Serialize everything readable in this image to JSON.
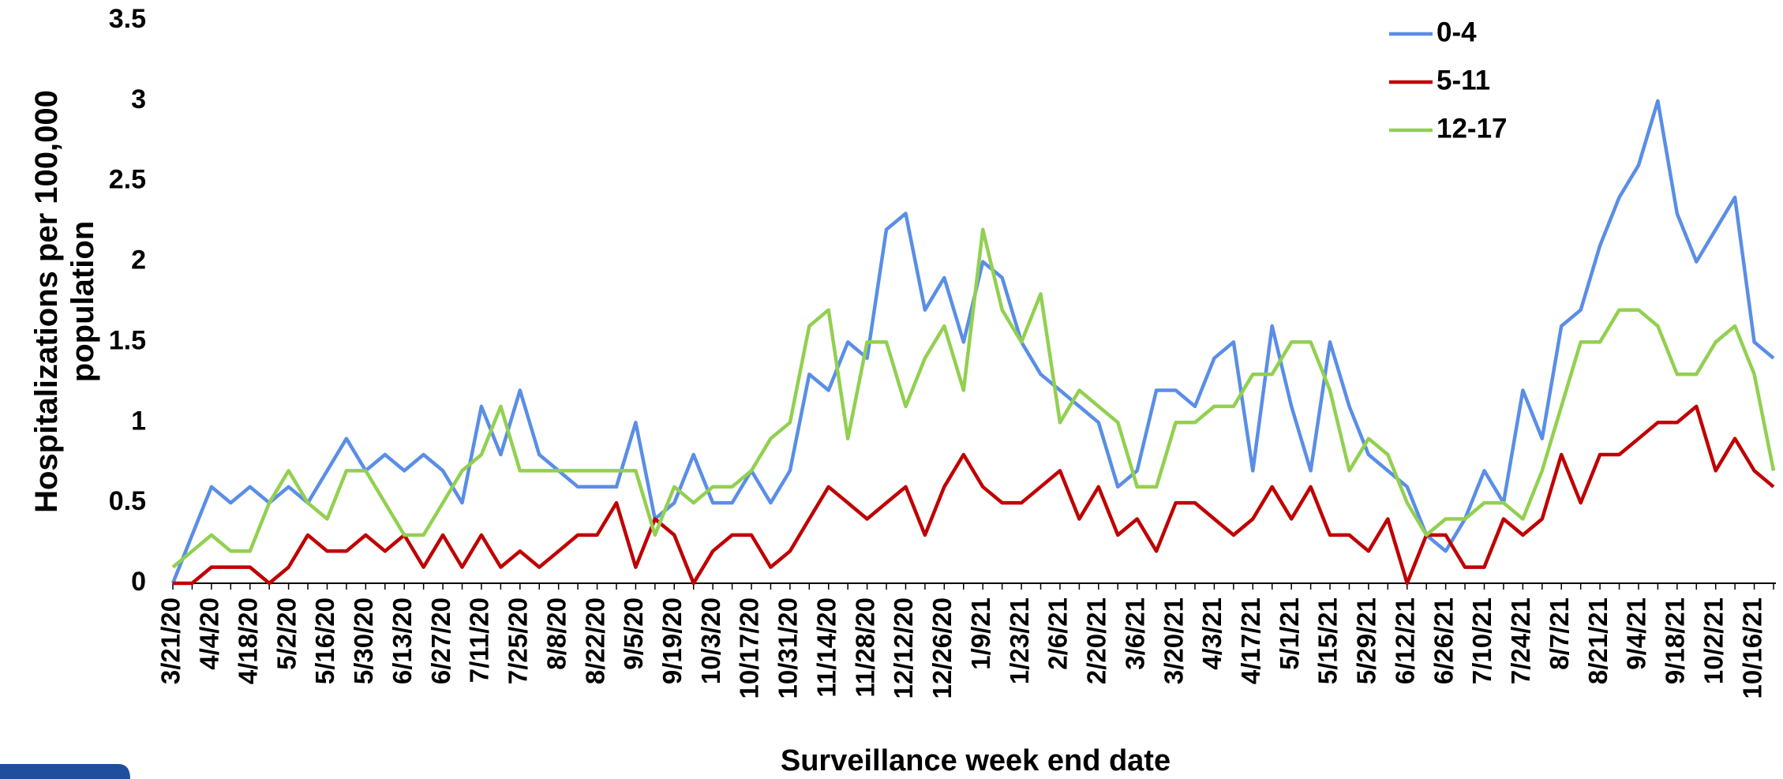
{
  "chart_data": {
    "type": "line",
    "x_label": "Surveillance week end date",
    "y_label": "Hospitalizations per 100,000 population",
    "categories": [
      "3/21/20",
      null,
      "4/4/20",
      null,
      "4/18/20",
      null,
      "5/2/20",
      null,
      "5/16/20",
      null,
      "5/30/20",
      null,
      "6/13/20",
      null,
      "6/27/20",
      null,
      "7/11/20",
      null,
      "7/25/20",
      null,
      "8/8/20",
      null,
      "8/22/20",
      null,
      "9/5/20",
      null,
      "9/19/20",
      null,
      "10/3/20",
      null,
      "10/17/20",
      null,
      "10/31/20",
      null,
      "11/14/20",
      null,
      "11/28/20",
      null,
      "12/12/20",
      null,
      "12/26/20",
      null,
      "1/9/21",
      null,
      "1/23/21",
      null,
      "2/6/21",
      null,
      "2/20/21",
      null,
      "3/6/21",
      null,
      "3/20/21",
      null,
      "4/3/21",
      null,
      "4/17/21",
      null,
      "5/1/21",
      null,
      "5/15/21",
      null,
      "5/29/21",
      null,
      "6/12/21",
      null,
      "6/26/21",
      null,
      "7/10/21",
      null,
      "7/24/21",
      null,
      "8/7/21",
      null,
      "8/21/21",
      null,
      "9/4/21",
      null,
      "9/18/21",
      null,
      "10/2/21",
      null,
      "10/16/21",
      null
    ],
    "series": [
      {
        "name": "0-4",
        "color": "#5a8ee6",
        "values": [
          0,
          0.3,
          0.6,
          0.5,
          0.6,
          0.5,
          0.6,
          0.5,
          0.7,
          0.9,
          0.7,
          0.8,
          0.7,
          0.8,
          0.7,
          0.5,
          1.1,
          0.8,
          1.2,
          0.8,
          0.7,
          0.6,
          0.6,
          0.6,
          1.0,
          0.4,
          0.5,
          0.8,
          0.5,
          0.5,
          0.7,
          0.5,
          0.7,
          1.3,
          1.2,
          1.5,
          1.4,
          2.2,
          2.3,
          1.7,
          1.9,
          1.5,
          2.0,
          1.9,
          1.5,
          1.3,
          1.2,
          1.1,
          1.0,
          0.6,
          0.7,
          1.2,
          1.2,
          1.1,
          1.4,
          1.5,
          0.7,
          1.6,
          1.1,
          0.7,
          1.5,
          1.1,
          0.8,
          0.7,
          0.6,
          0.3,
          0.2,
          0.4,
          0.7,
          0.5,
          1.2,
          0.9,
          1.6,
          1.7,
          2.1,
          2.4,
          2.6,
          3.0,
          2.3,
          2.0,
          2.2,
          2.4,
          1.5,
          1.4
        ]
      },
      {
        "name": "5-11",
        "color": "#c00000",
        "values": [
          0,
          0,
          0.1,
          0.1,
          0.1,
          0,
          0.1,
          0.3,
          0.2,
          0.2,
          0.3,
          0.2,
          0.3,
          0.1,
          0.3,
          0.1,
          0.3,
          0.1,
          0.2,
          0.1,
          0.2,
          0.3,
          0.3,
          0.5,
          0.1,
          0.4,
          0.3,
          0,
          0.2,
          0.3,
          0.3,
          0.1,
          0.2,
          0.4,
          0.6,
          0.5,
          0.4,
          0.5,
          0.6,
          0.3,
          0.6,
          0.8,
          0.6,
          0.5,
          0.5,
          0.6,
          0.7,
          0.4,
          0.6,
          0.3,
          0.4,
          0.2,
          0.5,
          0.5,
          0.4,
          0.3,
          0.4,
          0.6,
          0.4,
          0.6,
          0.3,
          0.3,
          0.2,
          0.4,
          0,
          0.3,
          0.3,
          0.1,
          0.1,
          0.4,
          0.3,
          0.4,
          0.8,
          0.5,
          0.8,
          0.8,
          0.9,
          1.0,
          1.0,
          1.1,
          0.7,
          0.9,
          0.7,
          0.6
        ]
      },
      {
        "name": "12-17",
        "color": "#92d050",
        "values": [
          0.1,
          0.2,
          0.3,
          0.2,
          0.2,
          0.5,
          0.7,
          0.5,
          0.4,
          0.7,
          0.7,
          0.5,
          0.3,
          0.3,
          0.5,
          0.7,
          0.8,
          1.1,
          0.7,
          0.7,
          0.7,
          0.7,
          0.7,
          0.7,
          0.7,
          0.3,
          0.6,
          0.5,
          0.6,
          0.6,
          0.7,
          0.9,
          1.0,
          1.6,
          1.7,
          0.9,
          1.5,
          1.5,
          1.1,
          1.4,
          1.6,
          1.2,
          2.2,
          1.7,
          1.5,
          1.8,
          1.0,
          1.2,
          1.1,
          1.0,
          0.6,
          0.6,
          1.0,
          1.0,
          1.1,
          1.1,
          1.3,
          1.3,
          1.5,
          1.5,
          1.2,
          0.7,
          0.9,
          0.8,
          0.5,
          0.3,
          0.4,
          0.4,
          0.5,
          0.5,
          0.4,
          0.7,
          1.1,
          1.5,
          1.5,
          1.7,
          1.7,
          1.6,
          1.3,
          1.3,
          1.5,
          1.6,
          1.3,
          0.7
        ]
      }
    ],
    "ylim": [
      0,
      3.5
    ],
    "yticks": [
      0,
      0.5,
      1,
      1.5,
      2,
      2.5,
      3,
      3.5
    ],
    "grid": false,
    "legend": "top-right"
  }
}
